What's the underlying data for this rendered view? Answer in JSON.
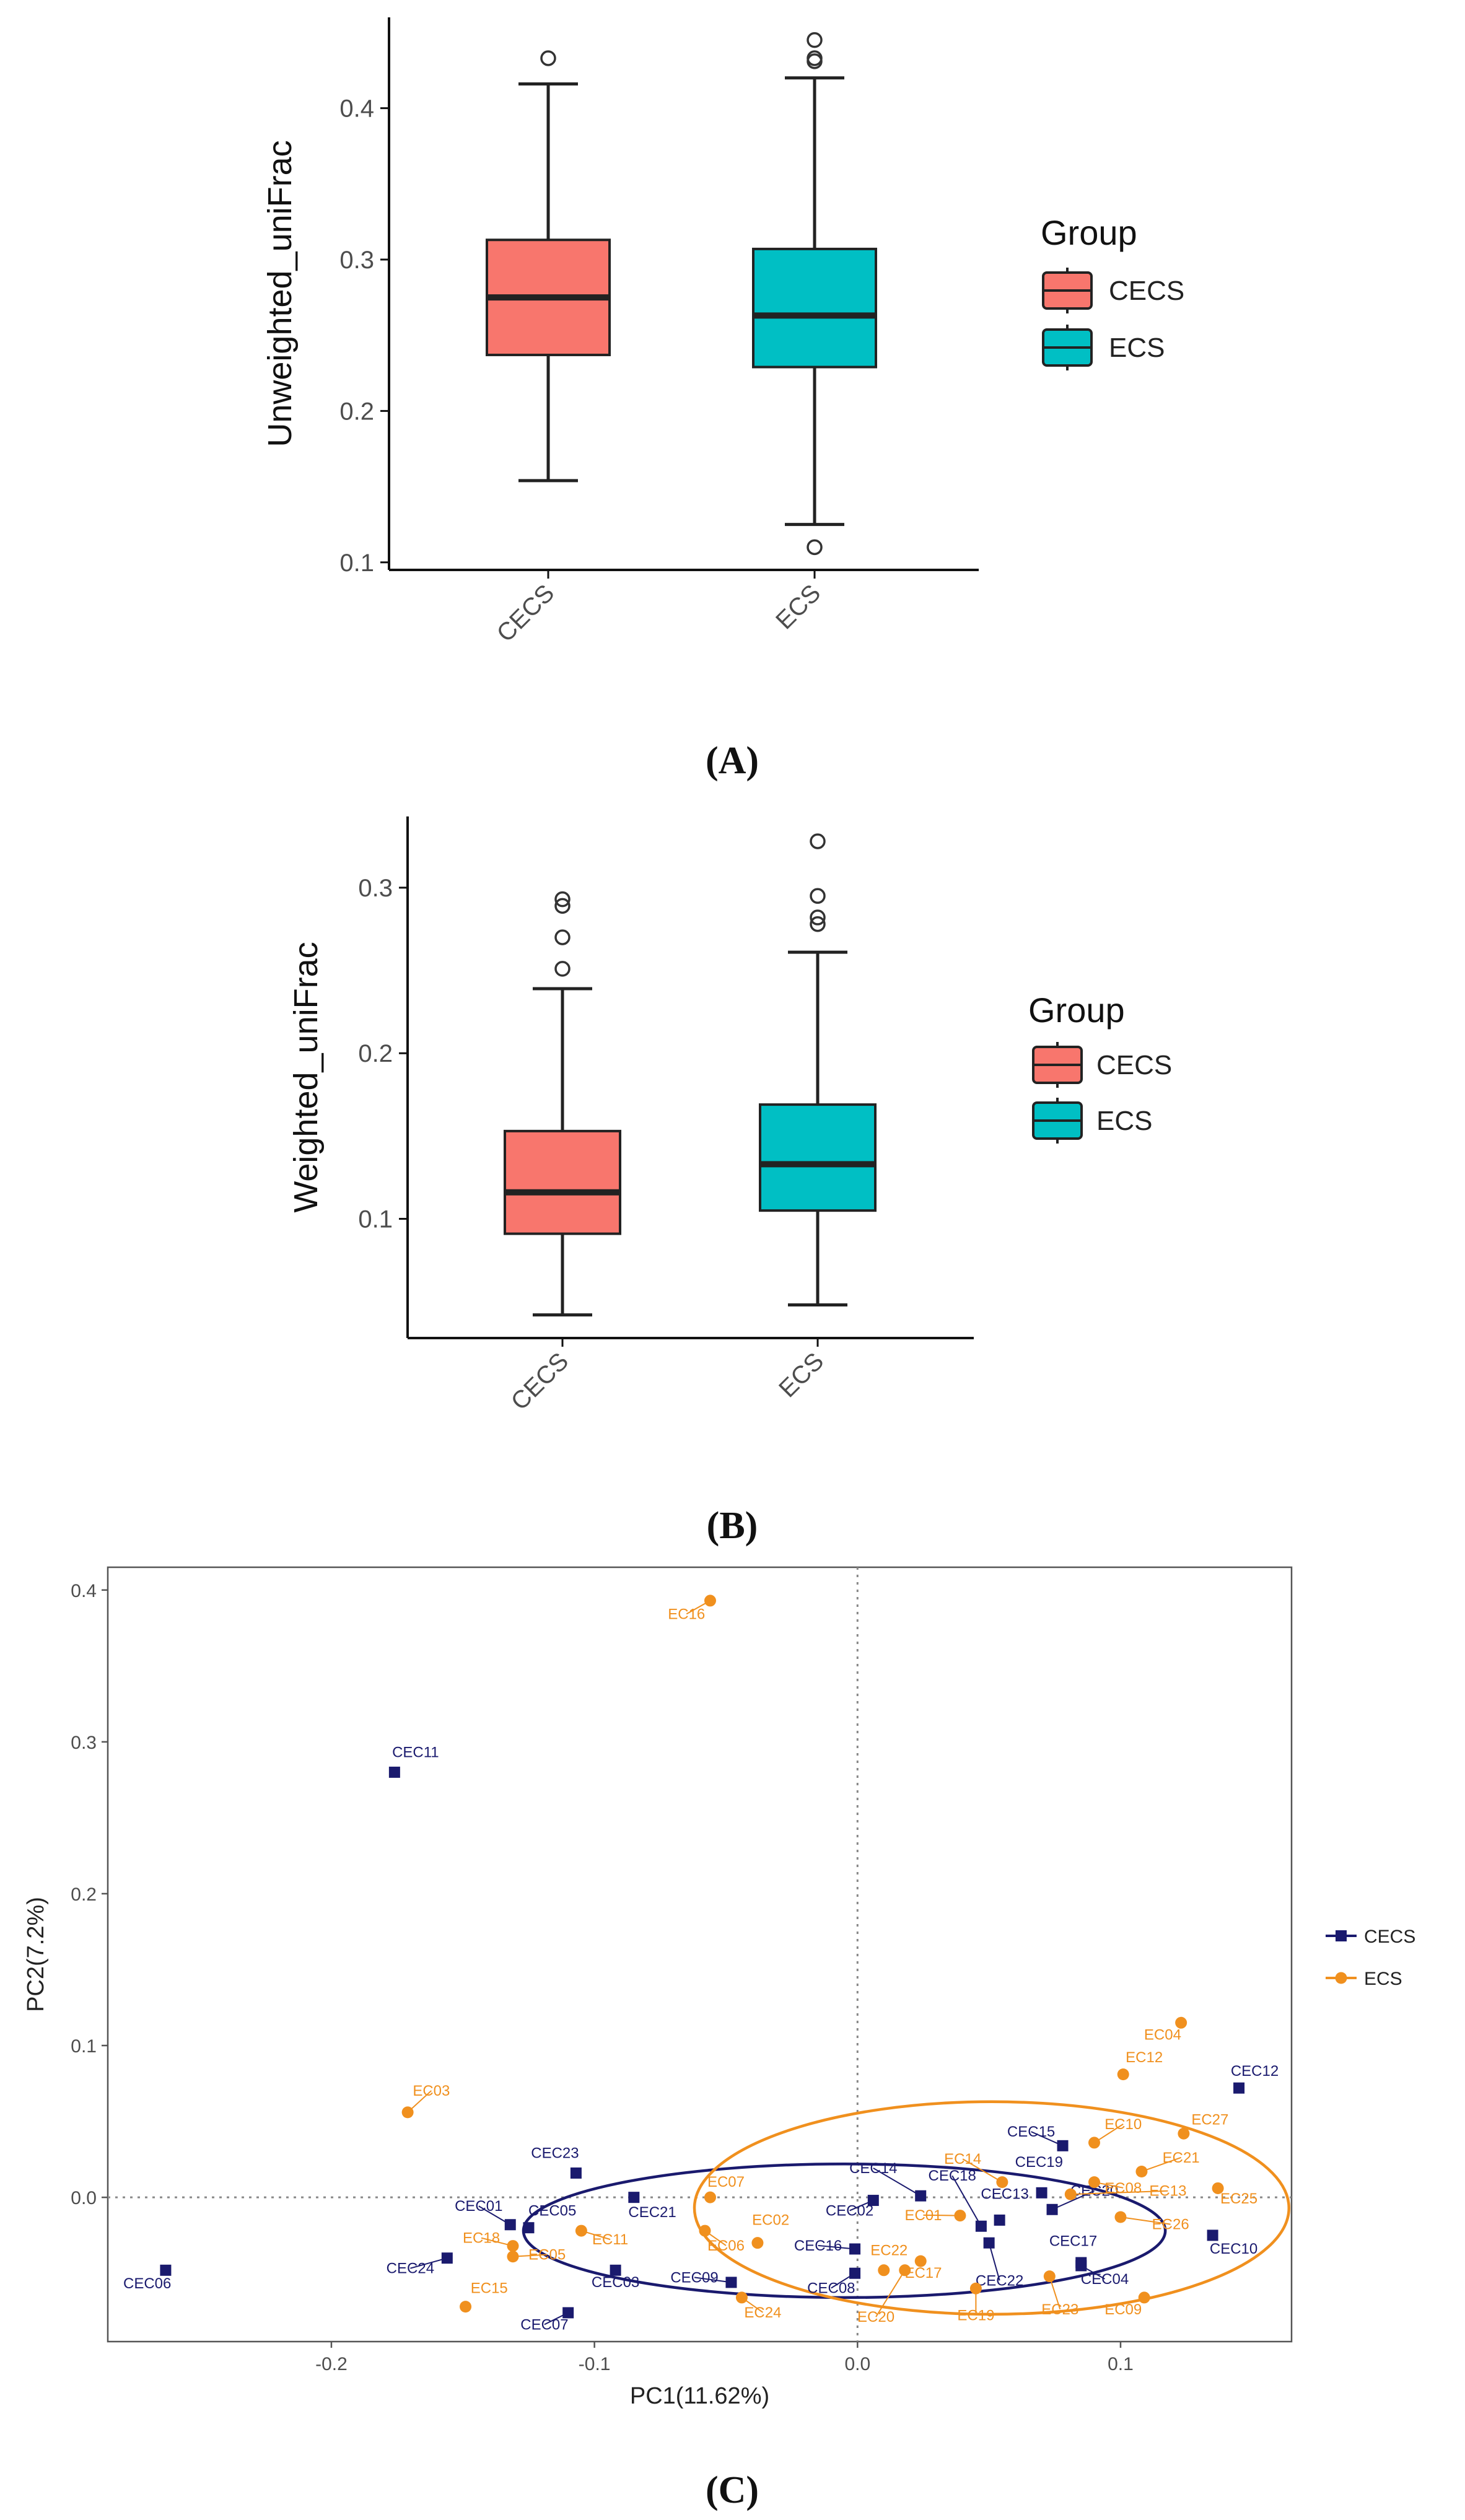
{
  "colors": {
    "cecs_box": "#F8766D",
    "ecs_box": "#00BFC4",
    "cecs_points": "#1A1A6E",
    "ecs_points": "#F0901E",
    "axis": "#111111",
    "tick_text": "#4D4D4D"
  },
  "panel_labels": {
    "a": "(A)",
    "b": "(B)",
    "c": "(C)"
  },
  "chart_data": [
    {
      "type": "boxplot",
      "panel": "A",
      "xlabel": "",
      "ylabel": "Unweighted_uniFrac",
      "categories": [
        "CECS",
        "ECS"
      ],
      "ylim": [
        0.095,
        0.46
      ],
      "yticks": [
        "0.1",
        "0.2",
        "0.3",
        "0.4"
      ],
      "ytick_values": [
        0.1,
        0.2,
        0.3,
        0.4
      ],
      "legend_title": "Group",
      "legend": [
        "CECS",
        "ECS"
      ],
      "boxes": [
        {
          "name": "CECS",
          "min": 0.154,
          "q1": 0.237,
          "median": 0.275,
          "q3": 0.313,
          "max": 0.416,
          "outliers": [
            0.433
          ]
        },
        {
          "name": "ECS",
          "min": 0.125,
          "q1": 0.229,
          "median": 0.263,
          "q3": 0.307,
          "max": 0.42,
          "outliers": [
            0.11,
            0.431,
            0.433,
            0.445
          ]
        }
      ]
    },
    {
      "type": "boxplot",
      "panel": "B",
      "xlabel": "",
      "ylabel": "Weighted_uniFrac",
      "categories": [
        "CECS",
        "ECS"
      ],
      "ylim": [
        0.028,
        0.343
      ],
      "yticks": [
        "0.1",
        "0.2",
        "0.3"
      ],
      "ytick_values": [
        0.1,
        0.2,
        0.3
      ],
      "legend_title": "Group",
      "legend": [
        "CECS",
        "ECS"
      ],
      "boxes": [
        {
          "name": "CECS",
          "min": 0.042,
          "q1": 0.091,
          "median": 0.116,
          "q3": 0.153,
          "max": 0.239,
          "outliers": [
            0.251,
            0.27,
            0.289,
            0.293
          ]
        },
        {
          "name": "ECS",
          "min": 0.048,
          "q1": 0.105,
          "median": 0.133,
          "q3": 0.169,
          "max": 0.261,
          "outliers": [
            0.278,
            0.282,
            0.295,
            0.328
          ]
        }
      ]
    },
    {
      "type": "scatter",
      "panel": "C",
      "xlabel": "PC1(11.62%)",
      "ylabel": "PC2(7.2%)",
      "xlim": [
        -0.285,
        0.165
      ],
      "ylim": [
        -0.095,
        0.415
      ],
      "xticks": [
        "-0.2",
        "-0.1",
        "0.0",
        "0.1"
      ],
      "xtick_values": [
        -0.2,
        -0.1,
        0.0,
        0.1
      ],
      "yticks": [
        "0.0",
        "0.1",
        "0.2",
        "0.3",
        "0.4"
      ],
      "ytick_values": [
        0.0,
        0.1,
        0.2,
        0.3,
        0.4
      ],
      "reference_lines": {
        "x": 0,
        "y": 0
      },
      "legend": [
        "CECS",
        "ECS"
      ],
      "ellipses": [
        {
          "group": "CECS",
          "cx": -0.005,
          "cy": -0.022,
          "rx": 0.122,
          "ry": 0.044
        },
        {
          "group": "ECS",
          "cx": 0.051,
          "cy": -0.007,
          "rx": 0.113,
          "ry": 0.07
        }
      ],
      "series": [
        {
          "name": "CECS",
          "marker": "square",
          "points": [
            {
              "label": "CEC06",
              "x": -0.263,
              "y": -0.048,
              "lx": -0.27,
              "ly": -0.06
            },
            {
              "label": "CEC11",
              "x": -0.176,
              "y": 0.28,
              "lx": -0.168,
              "ly": 0.29
            },
            {
              "label": "CEC23",
              "x": -0.107,
              "y": 0.016,
              "lx": -0.115,
              "ly": 0.026
            },
            {
              "label": "CEC01",
              "x": -0.132,
              "y": -0.018,
              "lx": -0.144,
              "ly": -0.009
            },
            {
              "label": "CEC05",
              "x": -0.125,
              "y": -0.02,
              "lx": -0.116,
              "ly": -0.012
            },
            {
              "label": "CEC24",
              "x": -0.156,
              "y": -0.04,
              "lx": -0.17,
              "ly": -0.05
            },
            {
              "label": "CEC07",
              "x": -0.11,
              "y": -0.076,
              "lx": -0.119,
              "ly": -0.087
            },
            {
              "label": "CEC03",
              "x": -0.092,
              "y": -0.048,
              "lx": -0.092,
              "ly": -0.059
            },
            {
              "label": "CEC21",
              "x": -0.085,
              "y": 0.0,
              "lx": -0.078,
              "ly": -0.013
            },
            {
              "label": "CEC09",
              "x": -0.048,
              "y": -0.056,
              "lx": -0.062,
              "ly": -0.056
            },
            {
              "label": "CEC08",
              "x": -0.001,
              "y": -0.05,
              "lx": -0.01,
              "ly": -0.063
            },
            {
              "label": "CEC16",
              "x": -0.001,
              "y": -0.034,
              "lx": -0.015,
              "ly": -0.035
            },
            {
              "label": "CEC02",
              "x": 0.006,
              "y": -0.002,
              "lx": -0.003,
              "ly": -0.012
            },
            {
              "label": "CEC14",
              "x": 0.024,
              "y": 0.001,
              "lx": 0.006,
              "ly": 0.016
            },
            {
              "label": "CEC18",
              "x": 0.047,
              "y": -0.019,
              "lx": 0.036,
              "ly": 0.011
            },
            {
              "label": "CEC22",
              "x": 0.05,
              "y": -0.03,
              "lx": 0.054,
              "ly": -0.058
            },
            {
              "label": "CEC13",
              "x": 0.054,
              "y": -0.015,
              "lx": 0.056,
              "ly": -0.001
            },
            {
              "label": "CEC15",
              "x": 0.078,
              "y": 0.034,
              "lx": 0.066,
              "ly": 0.04
            },
            {
              "label": "CEC19",
              "x": 0.07,
              "y": 0.003,
              "lx": 0.069,
              "ly": 0.02
            },
            {
              "label": "CEC20",
              "x": 0.074,
              "y": -0.008,
              "lx": 0.09,
              "ly": 0.001
            },
            {
              "label": "CEC17",
              "x": 0.085,
              "y": -0.043,
              "lx": 0.082,
              "ly": -0.032
            },
            {
              "label": "CEC04",
              "x": 0.085,
              "y": -0.045,
              "lx": 0.094,
              "ly": -0.057
            },
            {
              "label": "CEC10",
              "x": 0.135,
              "y": -0.025,
              "lx": 0.143,
              "ly": -0.037
            },
            {
              "label": "CEC12",
              "x": 0.145,
              "y": 0.072,
              "lx": 0.151,
              "ly": 0.08
            }
          ]
        },
        {
          "name": "ECS",
          "marker": "circle",
          "points": [
            {
              "label": "EC16",
              "x": -0.056,
              "y": 0.393,
              "lx": -0.065,
              "ly": 0.381
            },
            {
              "label": "EC03",
              "x": -0.171,
              "y": 0.056,
              "lx": -0.162,
              "ly": 0.067
            },
            {
              "label": "EC18",
              "x": -0.131,
              "y": -0.032,
              "lx": -0.143,
              "ly": -0.03
            },
            {
              "label": "EC05",
              "x": -0.131,
              "y": -0.039,
              "lx": -0.118,
              "ly": -0.041
            },
            {
              "label": "EC11",
              "x": -0.105,
              "y": -0.022,
              "lx": -0.094,
              "ly": -0.031
            },
            {
              "label": "EC15",
              "x": -0.149,
              "y": -0.072,
              "lx": -0.14,
              "ly": -0.063
            },
            {
              "label": "EC07",
              "x": -0.056,
              "y": 0.0,
              "lx": -0.05,
              "ly": 0.007
            },
            {
              "label": "EC02",
              "x": -0.038,
              "y": -0.03,
              "lx": -0.033,
              "ly": -0.018
            },
            {
              "label": "EC06",
              "x": -0.058,
              "y": -0.022,
              "lx": -0.05,
              "ly": -0.035
            },
            {
              "label": "EC24",
              "x": -0.044,
              "y": -0.066,
              "lx": -0.036,
              "ly": -0.079
            },
            {
              "label": "EC22",
              "x": 0.01,
              "y": -0.048,
              "lx": 0.012,
              "ly": -0.038
            },
            {
              "label": "EC20",
              "x": 0.018,
              "y": -0.048,
              "lx": 0.007,
              "ly": -0.082
            },
            {
              "label": "EC01",
              "x": 0.039,
              "y": -0.012,
              "lx": 0.025,
              "ly": -0.015
            },
            {
              "label": "EC17",
              "x": 0.024,
              "y": -0.042,
              "lx": 0.025,
              "ly": -0.053
            },
            {
              "label": "EC14",
              "x": 0.055,
              "y": 0.01,
              "lx": 0.04,
              "ly": 0.022
            },
            {
              "label": "EC19",
              "x": 0.045,
              "y": -0.06,
              "lx": 0.045,
              "ly": -0.081
            },
            {
              "label": "EC23",
              "x": 0.073,
              "y": -0.052,
              "lx": 0.077,
              "ly": -0.077
            },
            {
              "label": "EC08",
              "x": 0.09,
              "y": 0.01,
              "lx": 0.101,
              "ly": 0.003
            },
            {
              "label": "EC10",
              "x": 0.09,
              "y": 0.036,
              "lx": 0.101,
              "ly": 0.045
            },
            {
              "label": "EC13",
              "x": 0.081,
              "y": 0.002,
              "lx": 0.118,
              "ly": 0.001
            },
            {
              "label": "EC26",
              "x": 0.1,
              "y": -0.013,
              "lx": 0.119,
              "ly": -0.021
            },
            {
              "label": "EC21",
              "x": 0.108,
              "y": 0.017,
              "lx": 0.123,
              "ly": 0.023
            },
            {
              "label": "EC27",
              "x": 0.124,
              "y": 0.042,
              "lx": 0.134,
              "ly": 0.048
            },
            {
              "label": "EC25",
              "x": 0.137,
              "y": 0.006,
              "lx": 0.145,
              "ly": -0.004
            },
            {
              "label": "EC12",
              "x": 0.101,
              "y": 0.081,
              "lx": 0.109,
              "ly": 0.089
            },
            {
              "label": "EC04",
              "x": 0.123,
              "y": 0.115,
              "lx": 0.116,
              "ly": 0.104
            },
            {
              "label": "EC09",
              "x": 0.109,
              "y": -0.066,
              "lx": 0.101,
              "ly": -0.077
            }
          ]
        }
      ]
    }
  ]
}
